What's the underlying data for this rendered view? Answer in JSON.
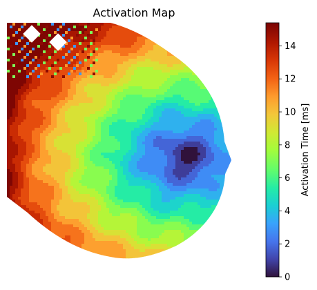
{
  "chart_data": {
    "type": "heatmap",
    "title": "Activation Map",
    "colormap": "turbo",
    "axes_visible": false,
    "colorbar": {
      "label": "Activation Time [ms]",
      "range": [
        0,
        15.4
      ],
      "ticks": [
        0,
        2,
        4,
        6,
        8,
        10,
        12,
        14
      ]
    },
    "earliest_activation": {
      "value_ms": 0.5,
      "location": "right side of map"
    },
    "latest_activation": {
      "value_ms": 15,
      "location": "left edge of map"
    }
  }
}
